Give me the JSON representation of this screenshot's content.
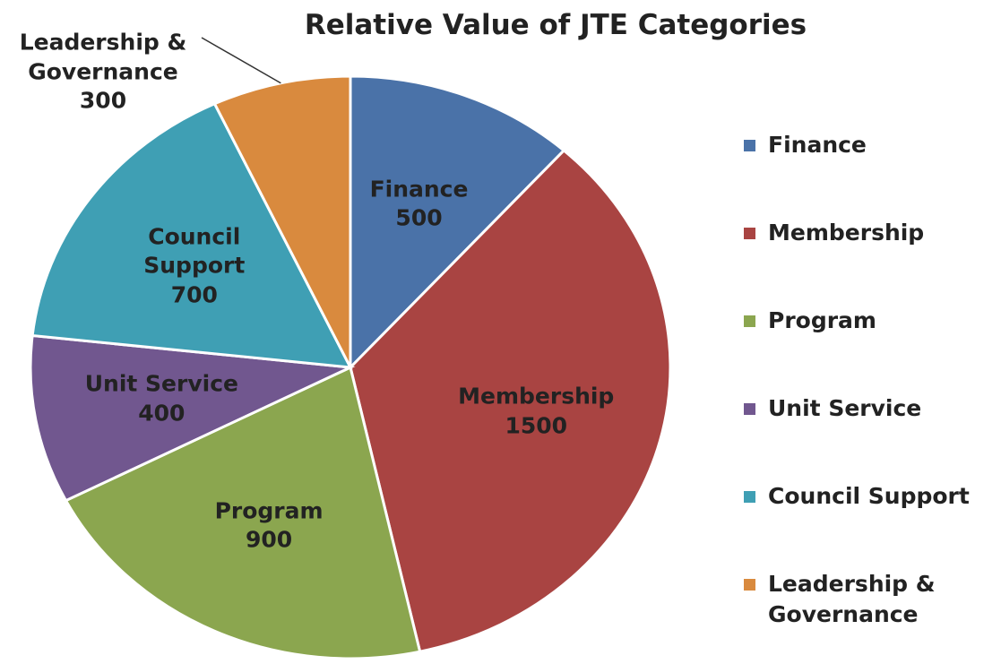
{
  "chart_data": {
    "type": "pie",
    "title": "Relative Value of JTE Categories",
    "categories": [
      "Finance",
      "Membership",
      "Program",
      "Unit Service",
      "Council Support",
      "Leadership & Governance"
    ],
    "values": [
      500,
      1500,
      900,
      400,
      700,
      300
    ],
    "colors": [
      "#4a72a8",
      "#a94442",
      "#8ba64f",
      "#71578f",
      "#3f9fb4",
      "#d98a3e"
    ],
    "legend": "right"
  }
}
